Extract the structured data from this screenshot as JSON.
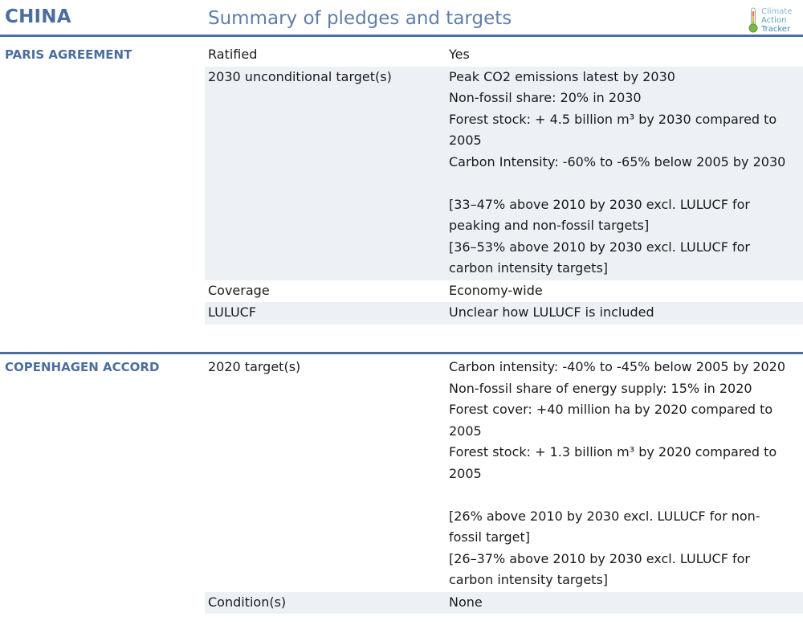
{
  "header": {
    "country": "CHINA",
    "subtitle": "Summary of pledges and targets",
    "logo": {
      "line1": "Climate",
      "line2": "Action",
      "line3": "Tracker",
      "icon": "thermometer-icon"
    }
  },
  "colors": {
    "accent": "#4b6e9e",
    "row_shade": "#edf1f6"
  },
  "paris": {
    "title": "PARIS AGREEMENT",
    "rows": [
      {
        "label": "Ratified",
        "value": [
          "Yes"
        ]
      },
      {
        "label": "2030 unconditional target(s)",
        "value": [
          "Peak CO2 emissions latest by 2030",
          "Non-fossil share: 20% in 2030",
          "Forest stock: + 4.5 billion m³ by 2030 compared to",
          "2005",
          "Carbon Intensity: -60% to -65% below 2005 by 2030",
          "",
          "[33–47% above 2010 by 2030 excl. LULUCF for",
          "peaking and non-fossil targets]",
          "[36–53% above 2010 by 2030 excl. LULUCF for",
          "carbon intensity targets]"
        ]
      },
      {
        "label": "Coverage",
        "value": [
          "Economy-wide"
        ]
      },
      {
        "label": "LULUCF",
        "value": [
          "Unclear how LULUCF is included"
        ]
      }
    ]
  },
  "copenhagen": {
    "title": "COPENHAGEN ACCORD",
    "rows": [
      {
        "label": "2020 target(s)",
        "value": [
          "Carbon intensity: -40% to -45% below 2005 by 2020",
          "Non-fossil share of energy supply: 15% in 2020",
          "Forest cover: +40 million ha by 2020 compared to",
          "2005",
          "Forest stock: + 1.3 billion m³ by 2020 compared to",
          "2005",
          "",
          "[26% above 2010 by 2030 excl. LULUCF for non-",
          "fossil target]",
          "[26–37% above 2010 by 2030 excl. LULUCF for",
          "carbon intensity targets]"
        ]
      },
      {
        "label": "Condition(s)",
        "value": [
          "None"
        ]
      }
    ]
  }
}
